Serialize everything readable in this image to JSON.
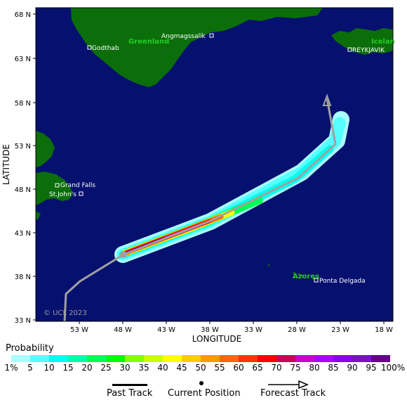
{
  "map": {
    "latitude_label": "LATITUDE",
    "longitude_label": "LONGITUDE",
    "lat_ticks": [
      "68 N",
      "63 N",
      "58 N",
      "53 N",
      "48 N",
      "43 N",
      "38 N",
      "33 N"
    ],
    "lon_ticks": [
      "53 W",
      "48 W",
      "43 W",
      "38 W",
      "33 W",
      "28 W",
      "23 W",
      "18 W"
    ],
    "places": {
      "greenland": "Greenland",
      "iceland": "Icelan",
      "azores": "Azores",
      "godthab": "Godthab",
      "angmagssalik": "Angmagssalik",
      "reykjavik": "REYKJAVIK",
      "grand_falls": "Grand Falls",
      "st_johns": "St.John's",
      "ponta_delgada": "Ponta Delgada"
    },
    "copyright": "© UCL 2023",
    "colors": {
      "ocean": "#06106e",
      "land": "#0b6e0b",
      "land_label": "#22cc22",
      "track": "#a0a0a0"
    }
  },
  "legend": {
    "title": "Probability",
    "labels": [
      "1%",
      "5",
      "10",
      "15",
      "20",
      "25",
      "30",
      "35",
      "40",
      "45",
      "50",
      "55",
      "60",
      "65",
      "70",
      "75",
      "80",
      "85",
      "90",
      "95",
      "100%"
    ],
    "colors": [
      "#aaffff",
      "#55ffff",
      "#00ffee",
      "#00ffaa",
      "#00ff55",
      "#00ff00",
      "#88ff00",
      "#ccff00",
      "#ffff00",
      "#ffcc00",
      "#ff9900",
      "#ff6600",
      "#ff3300",
      "#ff0000",
      "#cc0055",
      "#cc00cc",
      "#aa00ff",
      "#8800ee",
      "#7711cc",
      "#660088"
    ]
  },
  "track_legend": {
    "past": "Past Track",
    "current": "Current Position",
    "forecast": "Forecast Track"
  }
}
